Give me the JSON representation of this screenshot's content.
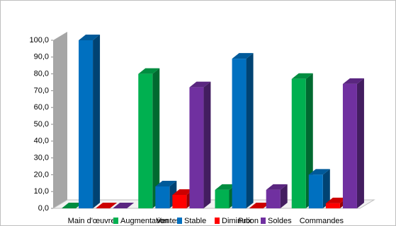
{
  "chart_data": {
    "type": "bar3d",
    "categories": [
      "Main d'œuvre",
      "Ventes",
      "Prix",
      "Commandes"
    ],
    "series": [
      {
        "name": "Augmentation",
        "color": "#00b050",
        "values": [
          0,
          80,
          11,
          77
        ]
      },
      {
        "name": "Stable",
        "color": "#0070c0",
        "values": [
          100,
          13,
          89,
          20
        ]
      },
      {
        "name": "Diminution",
        "color": "#ff0000",
        "values": [
          0,
          8,
          0,
          3
        ]
      },
      {
        "name": "Soldes",
        "color": "#7030a0",
        "values": [
          0,
          72,
          11,
          74
        ]
      }
    ],
    "ylim": [
      0,
      100
    ],
    "yticks": [
      {
        "value": 0,
        "label": "0,0"
      },
      {
        "value": 10,
        "label": "10,0"
      },
      {
        "value": 20,
        "label": "20,0"
      },
      {
        "value": 30,
        "label": "30,0"
      },
      {
        "value": 40,
        "label": "40,0"
      },
      {
        "value": 50,
        "label": "50,0"
      },
      {
        "value": 60,
        "label": "60,0"
      },
      {
        "value": 70,
        "label": "70,0"
      },
      {
        "value": 80,
        "label": "80,0"
      },
      {
        "value": 90,
        "label": "90,0"
      },
      {
        "value": 100,
        "label": "100,0"
      }
    ],
    "legend": "bottom"
  }
}
